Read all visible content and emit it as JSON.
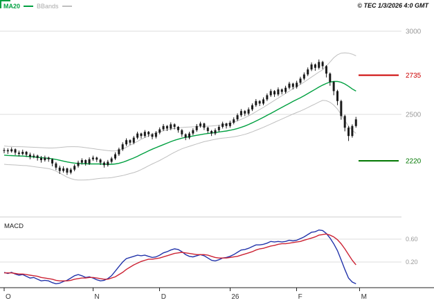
{
  "header": {
    "ma20_label": "MA20",
    "bbands_label": "BBands",
    "copyright": "© TEC 1/3/2026 4:0 GMT"
  },
  "chart_data": {
    "type": "candlestick+macd",
    "title": "",
    "style": {
      "ma_color": "#00a040",
      "band_color": "#bfbfbf",
      "candle_color": "#1a1a1a",
      "macd_color": "#2233aa",
      "signal_color": "#cc2233",
      "grid_color": "#dddddd",
      "axis_label_color": "#999999",
      "axis_color": "#222222"
    },
    "price_panel": {
      "ylim": [
        2100,
        3060
      ],
      "gridlines": [
        {
          "value": 3000,
          "label": "3000"
        },
        {
          "value": 2500,
          "label": "2500"
        }
      ],
      "levels": [
        {
          "value": 2735,
          "label": "2735",
          "color": "#cc0000"
        },
        {
          "value": 2220,
          "label": "2220",
          "color": "#007700"
        }
      ],
      "candles_ohlc": [
        [
          2280,
          2298,
          2266,
          2285
        ],
        [
          2285,
          2296,
          2262,
          2278
        ],
        [
          2278,
          2302,
          2270,
          2290
        ],
        [
          2290,
          2295,
          2255,
          2270
        ],
        [
          2270,
          2282,
          2248,
          2262
        ],
        [
          2262,
          2288,
          2254,
          2275
        ],
        [
          2275,
          2280,
          2244,
          2258
        ],
        [
          2258,
          2270,
          2230,
          2245
        ],
        [
          2245,
          2264,
          2236,
          2252
        ],
        [
          2252,
          2258,
          2222,
          2238
        ],
        [
          2238,
          2250,
          2210,
          2225
        ],
        [
          2225,
          2252,
          2216,
          2240
        ],
        [
          2240,
          2246,
          2215,
          2230
        ],
        [
          2230,
          2236,
          2188,
          2205
        ],
        [
          2205,
          2214,
          2165,
          2180
        ],
        [
          2180,
          2192,
          2142,
          2160
        ],
        [
          2160,
          2188,
          2150,
          2175
        ],
        [
          2175,
          2180,
          2136,
          2150
        ],
        [
          2150,
          2178,
          2140,
          2168
        ],
        [
          2168,
          2200,
          2158,
          2190
        ],
        [
          2190,
          2222,
          2180,
          2210
        ],
        [
          2210,
          2236,
          2198,
          2225
        ],
        [
          2225,
          2230,
          2192,
          2205
        ],
        [
          2205,
          2242,
          2196,
          2230
        ],
        [
          2230,
          2252,
          2220,
          2240
        ],
        [
          2240,
          2246,
          2214,
          2228
        ],
        [
          2228,
          2235,
          2196,
          2210
        ],
        [
          2210,
          2218,
          2180,
          2195
        ],
        [
          2195,
          2226,
          2186,
          2215
        ],
        [
          2215,
          2245,
          2205,
          2235
        ],
        [
          2235,
          2272,
          2226,
          2260
        ],
        [
          2260,
          2300,
          2250,
          2290
        ],
        [
          2290,
          2332,
          2280,
          2320
        ],
        [
          2320,
          2356,
          2310,
          2345
        ],
        [
          2345,
          2350,
          2316,
          2330
        ],
        [
          2330,
          2370,
          2320,
          2360
        ],
        [
          2360,
          2396,
          2350,
          2385
        ],
        [
          2385,
          2390,
          2355,
          2370
        ],
        [
          2370,
          2406,
          2360,
          2395
        ],
        [
          2395,
          2400,
          2365,
          2380
        ],
        [
          2380,
          2388,
          2350,
          2365
        ],
        [
          2365,
          2400,
          2355,
          2390
        ],
        [
          2390,
          2422,
          2380,
          2410
        ],
        [
          2410,
          2442,
          2400,
          2430
        ],
        [
          2430,
          2436,
          2400,
          2415
        ],
        [
          2415,
          2452,
          2405,
          2440
        ],
        [
          2440,
          2446,
          2410,
          2425
        ],
        [
          2425,
          2430,
          2390,
          2405
        ],
        [
          2405,
          2412,
          2365,
          2380
        ],
        [
          2380,
          2386,
          2345,
          2360
        ],
        [
          2360,
          2396,
          2350,
          2385
        ],
        [
          2385,
          2416,
          2375,
          2405
        ],
        [
          2405,
          2442,
          2395,
          2430
        ],
        [
          2430,
          2456,
          2420,
          2445
        ],
        [
          2445,
          2450,
          2406,
          2420
        ],
        [
          2420,
          2426,
          2386,
          2400
        ],
        [
          2400,
          2406,
          2370,
          2385
        ],
        [
          2385,
          2416,
          2375,
          2405
        ],
        [
          2405,
          2436,
          2395,
          2425
        ],
        [
          2425,
          2456,
          2415,
          2445
        ],
        [
          2445,
          2450,
          2415,
          2430
        ],
        [
          2430,
          2462,
          2420,
          2450
        ],
        [
          2450,
          2482,
          2440,
          2470
        ],
        [
          2470,
          2506,
          2460,
          2495
        ],
        [
          2495,
          2532,
          2485,
          2520
        ],
        [
          2520,
          2526,
          2490,
          2505
        ],
        [
          2505,
          2542,
          2495,
          2530
        ],
        [
          2530,
          2566,
          2520,
          2555
        ],
        [
          2555,
          2592,
          2545,
          2580
        ],
        [
          2580,
          2586,
          2550,
          2565
        ],
        [
          2565,
          2602,
          2555,
          2590
        ],
        [
          2590,
          2626,
          2580,
          2615
        ],
        [
          2615,
          2652,
          2605,
          2640
        ],
        [
          2640,
          2646,
          2605,
          2620
        ],
        [
          2620,
          2662,
          2610,
          2650
        ],
        [
          2650,
          2656,
          2620,
          2635
        ],
        [
          2635,
          2672,
          2625,
          2660
        ],
        [
          2660,
          2696,
          2650,
          2685
        ],
        [
          2685,
          2690,
          2650,
          2665
        ],
        [
          2665,
          2702,
          2655,
          2690
        ],
        [
          2690,
          2726,
          2680,
          2715
        ],
        [
          2715,
          2752,
          2705,
          2740
        ],
        [
          2740,
          2782,
          2730,
          2770
        ],
        [
          2770,
          2812,
          2760,
          2800
        ],
        [
          2800,
          2806,
          2762,
          2780
        ],
        [
          2780,
          2830,
          2770,
          2815
        ],
        [
          2815,
          2822,
          2772,
          2790
        ],
        [
          2790,
          2796,
          2722,
          2745
        ],
        [
          2745,
          2752,
          2672,
          2695
        ],
        [
          2695,
          2700,
          2615,
          2640
        ],
        [
          2640,
          2648,
          2555,
          2580
        ],
        [
          2580,
          2588,
          2468,
          2490
        ],
        [
          2490,
          2498,
          2398,
          2420
        ],
        [
          2420,
          2430,
          2340,
          2370
        ],
        [
          2370,
          2440,
          2360,
          2430
        ],
        [
          2430,
          2485,
          2420,
          2470
        ]
      ],
      "ma20": [
        2255,
        2253,
        2252,
        2251,
        2250,
        2249,
        2248,
        2246,
        2244,
        2242,
        2240,
        2238,
        2236,
        2233,
        2229,
        2224,
        2219,
        2214,
        2210,
        2207,
        2205,
        2204,
        2203,
        2202,
        2202,
        2202,
        2202,
        2201,
        2200,
        2200,
        2202,
        2206,
        2212,
        2220,
        2229,
        2238,
        2248,
        2259,
        2270,
        2281,
        2291,
        2300,
        2309,
        2318,
        2327,
        2336,
        2344,
        2351,
        2357,
        2362,
        2366,
        2370,
        2374,
        2378,
        2382,
        2385,
        2388,
        2391,
        2394,
        2397,
        2400,
        2404,
        2409,
        2415,
        2422,
        2430,
        2439,
        2449,
        2460,
        2471,
        2482,
        2494,
        2506,
        2518,
        2530,
        2542,
        2554,
        2566,
        2578,
        2589,
        2600,
        2612,
        2625,
        2638,
        2651,
        2664,
        2676,
        2686,
        2694,
        2698,
        2698,
        2693,
        2683,
        2669,
        2653,
        2640
      ],
      "bb_upper": [
        2310,
        2308,
        2307,
        2306,
        2306,
        2305,
        2304,
        2303,
        2302,
        2301,
        2300,
        2299,
        2298,
        2298,
        2299,
        2301,
        2303,
        2305,
        2306,
        2306,
        2305,
        2303,
        2300,
        2297,
        2294,
        2291,
        2288,
        2285,
        2282,
        2280,
        2280,
        2284,
        2292,
        2302,
        2314,
        2326,
        2338,
        2350,
        2361,
        2371,
        2380,
        2388,
        2395,
        2401,
        2407,
        2412,
        2416,
        2419,
        2421,
        2423,
        2424,
        2425,
        2426,
        2427,
        2428,
        2429,
        2430,
        2432,
        2434,
        2437,
        2441,
        2446,
        2453,
        2461,
        2470,
        2480,
        2491,
        2503,
        2516,
        2529,
        2542,
        2556,
        2570,
        2584,
        2598,
        2612,
        2626,
        2640,
        2654,
        2667,
        2680,
        2694,
        2709,
        2724,
        2739,
        2754,
        2768,
        2790,
        2815,
        2840,
        2858,
        2868,
        2870,
        2868,
        2862,
        2852
      ],
      "bb_lower": [
        2200,
        2198,
        2197,
        2196,
        2194,
        2193,
        2192,
        2189,
        2186,
        2183,
        2180,
        2177,
        2174,
        2168,
        2159,
        2147,
        2135,
        2123,
        2114,
        2108,
        2105,
        2105,
        2106,
        2107,
        2110,
        2113,
        2116,
        2117,
        2118,
        2120,
        2124,
        2128,
        2132,
        2138,
        2144,
        2150,
        2158,
        2168,
        2179,
        2191,
        2202,
        2212,
        2223,
        2235,
        2247,
        2260,
        2272,
        2283,
        2293,
        2301,
        2308,
        2315,
        2322,
        2329,
        2336,
        2341,
        2346,
        2350,
        2354,
        2357,
        2359,
        2362,
        2365,
        2369,
        2374,
        2380,
        2387,
        2395,
        2404,
        2413,
        2422,
        2432,
        2442,
        2452,
        2462,
        2472,
        2482,
        2492,
        2502,
        2511,
        2520,
        2530,
        2541,
        2552,
        2563,
        2574,
        2584,
        2582,
        2573,
        2556,
        2532,
        2500,
        2462,
        2430,
        2404,
        2386
      ]
    },
    "macd_panel": {
      "label": "MACD",
      "gridlines": [
        {
          "value": 0.6,
          "label": "0.60"
        },
        {
          "value": 0.2,
          "label": "0.20"
        }
      ],
      "macd": [
        0.02,
        0.0,
        0.02,
        -0.01,
        -0.03,
        -0.02,
        -0.05,
        -0.08,
        -0.07,
        -0.1,
        -0.13,
        -0.12,
        -0.13,
        -0.16,
        -0.18,
        -0.17,
        -0.14,
        -0.12,
        -0.08,
        -0.04,
        -0.02,
        -0.04,
        -0.07,
        -0.06,
        -0.08,
        -0.11,
        -0.13,
        -0.12,
        -0.09,
        -0.04,
        0.04,
        0.12,
        0.2,
        0.26,
        0.28,
        0.3,
        0.32,
        0.31,
        0.32,
        0.3,
        0.28,
        0.29,
        0.32,
        0.36,
        0.38,
        0.41,
        0.43,
        0.42,
        0.38,
        0.33,
        0.3,
        0.29,
        0.31,
        0.33,
        0.31,
        0.27,
        0.23,
        0.22,
        0.24,
        0.27,
        0.28,
        0.3,
        0.33,
        0.37,
        0.41,
        0.42,
        0.44,
        0.47,
        0.5,
        0.5,
        0.51,
        0.53,
        0.56,
        0.55,
        0.56,
        0.55,
        0.56,
        0.58,
        0.57,
        0.58,
        0.61,
        0.64,
        0.68,
        0.72,
        0.73,
        0.76,
        0.75,
        0.7,
        0.62,
        0.52,
        0.4,
        0.24,
        0.07,
        -0.08,
        -0.15,
        -0.18
      ],
      "signal": [
        0.01,
        0.01,
        0.01,
        0.0,
        -0.01,
        -0.01,
        -0.02,
        -0.03,
        -0.04,
        -0.05,
        -0.07,
        -0.08,
        -0.09,
        -0.1,
        -0.12,
        -0.13,
        -0.13,
        -0.13,
        -0.12,
        -0.1,
        -0.09,
        -0.08,
        -0.08,
        -0.07,
        -0.07,
        -0.08,
        -0.09,
        -0.1,
        -0.1,
        -0.08,
        -0.06,
        -0.02,
        0.02,
        0.07,
        0.11,
        0.15,
        0.18,
        0.21,
        0.23,
        0.25,
        0.25,
        0.26,
        0.27,
        0.29,
        0.31,
        0.33,
        0.35,
        0.36,
        0.37,
        0.36,
        0.35,
        0.34,
        0.33,
        0.33,
        0.33,
        0.32,
        0.3,
        0.28,
        0.27,
        0.27,
        0.27,
        0.28,
        0.29,
        0.3,
        0.32,
        0.34,
        0.36,
        0.38,
        0.41,
        0.43,
        0.44,
        0.46,
        0.48,
        0.49,
        0.51,
        0.52,
        0.52,
        0.53,
        0.54,
        0.55,
        0.56,
        0.58,
        0.6,
        0.62,
        0.64,
        0.67,
        0.68,
        0.69,
        0.67,
        0.64,
        0.59,
        0.52,
        0.43,
        0.33,
        0.23,
        0.15
      ]
    },
    "x_labels": [
      {
        "text": "O",
        "i": 0
      },
      {
        "text": "N",
        "i": 24
      },
      {
        "text": "D",
        "i": 42
      },
      {
        "text": "26",
        "i": 61
      },
      {
        "text": "F",
        "i": 79
      },
      {
        "text": "M",
        "i": 96
      }
    ]
  }
}
